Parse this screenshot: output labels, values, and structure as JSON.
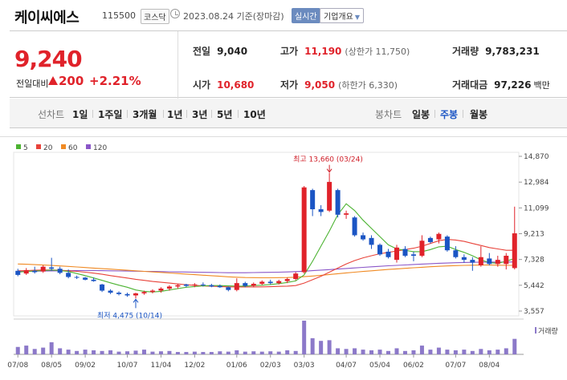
{
  "header": {
    "stock_name": "케이씨에스",
    "stock_code": "115500",
    "market": "코스닥",
    "date": "2023.08.24 기준(장마감)",
    "realtime_label": "실시간",
    "overview_label": "기업개요"
  },
  "quote": {
    "price": "9,240",
    "change_label": "전일대비",
    "change_value": "200",
    "change_pct": "+2.21%",
    "change_dir": "up",
    "prev_close_label": "전일",
    "prev_close": "9,040",
    "high_label": "고가",
    "high": "11,190",
    "upper_limit_text": "(상한가 11,750)",
    "volume_label": "거래량",
    "volume": "9,783,231",
    "open_label": "시가",
    "open": "10,680",
    "low_label": "저가",
    "low": "9,050",
    "lower_limit_text": "(하한가 6,330)",
    "turnover_label": "거래대금",
    "turnover": "97,226",
    "turnover_unit": "백만"
  },
  "period": {
    "line_chart_label": "선차트",
    "line_tabs": [
      "1일",
      "1주일",
      "3개월",
      "1년",
      "3년",
      "5년",
      "10년"
    ],
    "candle_chart_label": "봉차트",
    "candle_tabs": [
      "일봉",
      "주봉",
      "월봉"
    ],
    "active_candle_tab": "주봉"
  },
  "colors": {
    "up": "#e0222a",
    "down": "#1b55c4",
    "ma5": "#4cb332",
    "ma20": "#e8433a",
    "ma60": "#f08a24",
    "ma120": "#8a56c8",
    "volume": "#8c79c9"
  },
  "chart_data": {
    "type": "candlestick",
    "interval": "weekly",
    "legend": [
      {
        "name": "5",
        "color": "#4cb332"
      },
      {
        "name": "20",
        "color": "#e8433a"
      },
      {
        "name": "60",
        "color": "#f08a24"
      },
      {
        "name": "120",
        "color": "#8a56c8"
      }
    ],
    "y_ticks": [
      "14,870",
      "12,984",
      "11,099",
      "9,213",
      "7,328",
      "5,442",
      "3,557"
    ],
    "ylim": [
      3557,
      14870
    ],
    "x_ticks": [
      {
        "label": "07/08",
        "i": 0
      },
      {
        "label": "08/05",
        "i": 4
      },
      {
        "label": "09/02",
        "i": 8
      },
      {
        "label": "10/07",
        "i": 13
      },
      {
        "label": "11/04",
        "i": 17
      },
      {
        "label": "12/02",
        "i": 21
      },
      {
        "label": "01/06",
        "i": 26
      },
      {
        "label": "02/03",
        "i": 30
      },
      {
        "label": "03/03",
        "i": 34
      },
      {
        "label": "04/07",
        "i": 39
      },
      {
        "label": "05/04",
        "i": 43
      },
      {
        "label": "06/02",
        "i": 47
      },
      {
        "label": "07/07",
        "i": 52
      },
      {
        "label": "08/04",
        "i": 56
      }
    ],
    "annotations": {
      "high": {
        "text": "최고 13,660 (03/24)",
        "i": 37,
        "value": 13660
      },
      "low": {
        "text": "최저 4,475 (10/14)",
        "i": 14,
        "value": 4475
      }
    },
    "volume_label": "거래량",
    "candles": [
      {
        "o": 6500,
        "h": 6650,
        "l": 6100,
        "c": 6200
      },
      {
        "o": 6300,
        "h": 6700,
        "l": 6200,
        "c": 6550
      },
      {
        "o": 6500,
        "h": 6800,
        "l": 6300,
        "c": 6400
      },
      {
        "o": 6450,
        "h": 6900,
        "l": 6350,
        "c": 6800
      },
      {
        "o": 6750,
        "h": 7450,
        "l": 6500,
        "c": 6650
      },
      {
        "o": 6650,
        "h": 6800,
        "l": 6250,
        "c": 6350
      },
      {
        "o": 6350,
        "h": 6600,
        "l": 5950,
        "c": 6050
      },
      {
        "o": 6050,
        "h": 6150,
        "l": 5900,
        "c": 6000
      },
      {
        "o": 6000,
        "h": 6050,
        "l": 5800,
        "c": 5850
      },
      {
        "o": 5850,
        "h": 6000,
        "l": 5700,
        "c": 5750
      },
      {
        "o": 5500,
        "h": 5550,
        "l": 4950,
        "c": 5050
      },
      {
        "o": 5050,
        "h": 5150,
        "l": 4800,
        "c": 4900
      },
      {
        "o": 4900,
        "h": 5000,
        "l": 4700,
        "c": 4800
      },
      {
        "o": 4800,
        "h": 4900,
        "l": 4600,
        "c": 4700
      },
      {
        "o": 4700,
        "h": 4900,
        "l": 4475,
        "c": 4850
      },
      {
        "o": 4850,
        "h": 5050,
        "l": 4750,
        "c": 4950
      },
      {
        "o": 4950,
        "h": 5150,
        "l": 4850,
        "c": 5050
      },
      {
        "o": 5050,
        "h": 5300,
        "l": 4900,
        "c": 5200
      },
      {
        "o": 5200,
        "h": 5450,
        "l": 5050,
        "c": 5350
      },
      {
        "o": 5350,
        "h": 5550,
        "l": 5200,
        "c": 5450
      },
      {
        "o": 5500,
        "h": 5550,
        "l": 5300,
        "c": 5400
      },
      {
        "o": 5450,
        "h": 5600,
        "l": 5300,
        "c": 5500
      },
      {
        "o": 5500,
        "h": 5650,
        "l": 5350,
        "c": 5450
      },
      {
        "o": 5450,
        "h": 5550,
        "l": 5300,
        "c": 5350
      },
      {
        "o": 5400,
        "h": 5500,
        "l": 5250,
        "c": 5300
      },
      {
        "o": 5300,
        "h": 5350,
        "l": 5000,
        "c": 5100
      },
      {
        "o": 5100,
        "h": 5950,
        "l": 5000,
        "c": 5600
      },
      {
        "o": 5600,
        "h": 5700,
        "l": 5300,
        "c": 5400
      },
      {
        "o": 5400,
        "h": 5650,
        "l": 5300,
        "c": 5550
      },
      {
        "o": 5550,
        "h": 5800,
        "l": 5450,
        "c": 5700
      },
      {
        "o": 5700,
        "h": 5850,
        "l": 5500,
        "c": 5600
      },
      {
        "o": 5600,
        "h": 5850,
        "l": 5500,
        "c": 5750
      },
      {
        "o": 5750,
        "h": 6000,
        "l": 5600,
        "c": 5900
      },
      {
        "o": 5900,
        "h": 6400,
        "l": 5800,
        "c": 6300
      },
      {
        "o": 6400,
        "h": 12700,
        "l": 6300,
        "c": 12600
      },
      {
        "o": 12400,
        "h": 12500,
        "l": 10500,
        "c": 11000
      },
      {
        "o": 11000,
        "h": 11300,
        "l": 10500,
        "c": 10800
      },
      {
        "o": 10900,
        "h": 13660,
        "l": 10800,
        "c": 13000
      },
      {
        "o": 12400,
        "h": 12500,
        "l": 10400,
        "c": 10600
      },
      {
        "o": 10600,
        "h": 10900,
        "l": 10300,
        "c": 10700
      },
      {
        "o": 10400,
        "h": 10500,
        "l": 9000,
        "c": 9100
      },
      {
        "o": 9100,
        "h": 9300,
        "l": 8700,
        "c": 8800
      },
      {
        "o": 8900,
        "h": 9100,
        "l": 8100,
        "c": 8400
      },
      {
        "o": 8400,
        "h": 8500,
        "l": 7600,
        "c": 7700
      },
      {
        "o": 7900,
        "h": 8100,
        "l": 7400,
        "c": 7500
      },
      {
        "o": 7300,
        "h": 8400,
        "l": 7100,
        "c": 8200
      },
      {
        "o": 8100,
        "h": 8300,
        "l": 7500,
        "c": 7600
      },
      {
        "o": 7700,
        "h": 7900,
        "l": 7200,
        "c": 7600
      },
      {
        "o": 7600,
        "h": 9100,
        "l": 7500,
        "c": 8700
      },
      {
        "o": 8900,
        "h": 9000,
        "l": 8500,
        "c": 8600
      },
      {
        "o": 8800,
        "h": 9300,
        "l": 8500,
        "c": 9200
      },
      {
        "o": 9000,
        "h": 9100,
        "l": 7900,
        "c": 8000
      },
      {
        "o": 8000,
        "h": 8300,
        "l": 7400,
        "c": 7500
      },
      {
        "o": 7500,
        "h": 7700,
        "l": 7100,
        "c": 7300
      },
      {
        "o": 7300,
        "h": 7500,
        "l": 6500,
        "c": 7100
      },
      {
        "o": 6900,
        "h": 8300,
        "l": 6800,
        "c": 7500
      },
      {
        "o": 7400,
        "h": 7800,
        "l": 6900,
        "c": 7000
      },
      {
        "o": 7000,
        "h": 7600,
        "l": 6800,
        "c": 7300
      },
      {
        "o": 7000,
        "h": 7800,
        "l": 6600,
        "c": 7600
      },
      {
        "o": 6700,
        "h": 11190,
        "l": 6600,
        "c": 9240
      }
    ],
    "volume": [
      22,
      26,
      16,
      20,
      36,
      18,
      14,
      10,
      14,
      12,
      10,
      12,
      8,
      9,
      11,
      14,
      8,
      9,
      10,
      7,
      7,
      8,
      7,
      7,
      9,
      8,
      12,
      8,
      9,
      8,
      9,
      8,
      12,
      10,
      100,
      48,
      40,
      42,
      18,
      16,
      18,
      14,
      12,
      14,
      10,
      18,
      10,
      12,
      26,
      14,
      20,
      14,
      12,
      14,
      10,
      16,
      12,
      14,
      18,
      46
    ],
    "ma5": [
      6400,
      6450,
      6480,
      6520,
      6560,
      6520,
      6450,
      6300,
      6150,
      5980,
      5800,
      5620,
      5450,
      5300,
      5100,
      5000,
      4950,
      5000,
      5100,
      5200,
      5300,
      5350,
      5400,
      5420,
      5420,
      5400,
      5380,
      5380,
      5420,
      5450,
      5500,
      5560,
      5650,
      5760,
      6200,
      7200,
      8300,
      9400,
      10600,
      11400,
      10900,
      10200,
      9600,
      9000,
      8400,
      8100,
      8000,
      7900,
      7900,
      8050,
      8250,
      8300,
      8050,
      7850,
      7600,
      7300,
      7100,
      7050,
      7200,
      7400
    ],
    "ma20": [
      6500,
      6520,
      6540,
      6560,
      6560,
      6540,
      6500,
      6460,
      6400,
      6330,
      6250,
      6150,
      6060,
      5970,
      5880,
      5800,
      5720,
      5660,
      5600,
      5540,
      5480,
      5440,
      5400,
      5370,
      5350,
      5330,
      5320,
      5320,
      5320,
      5330,
      5340,
      5360,
      5380,
      5420,
      5600,
      5850,
      6100,
      6400,
      6700,
      7000,
      7250,
      7450,
      7600,
      7750,
      7850,
      7950,
      8050,
      8150,
      8300,
      8500,
      8700,
      8800,
      8750,
      8650,
      8500,
      8350,
      8200,
      8100,
      8000,
      8000
    ],
    "ma60": [
      7000,
      6980,
      6950,
      6920,
      6890,
      6860,
      6820,
      6780,
      6740,
      6700,
      6660,
      6620,
      6580,
      6540,
      6500,
      6460,
      6420,
      6380,
      6340,
      6300,
      6260,
      6220,
      6180,
      6140,
      6100,
      6060,
      6030,
      6010,
      6000,
      5990,
      5990,
      6000,
      6010,
      6030,
      6070,
      6120,
      6170,
      6230,
      6290,
      6350,
      6400,
      6450,
      6500,
      6550,
      6600,
      6640,
      6680,
      6720,
      6760,
      6800,
      6830,
      6860,
      6880,
      6900,
      6910,
      6920,
      6920,
      6910,
      6900,
      6900
    ],
    "ma120": [
      6450,
      6460,
      6470,
      6480,
      6490,
      6500,
      6510,
      6520,
      6520,
      6520,
      6510,
      6500,
      6490,
      6480,
      6470,
      6460,
      6450,
      6440,
      6430,
      6420,
      6410,
      6400,
      6390,
      6380,
      6370,
      6360,
      6360,
      6360,
      6370,
      6380,
      6390,
      6400,
      6420,
      6440,
      6470,
      6510,
      6550,
      6590,
      6630,
      6670,
      6710,
      6750,
      6790,
      6830,
      6870,
      6900,
      6930,
      6960,
      6990,
      7020,
      7050,
      7070,
      7090,
      7110,
      7120,
      7130,
      7140,
      7140,
      7140,
      7150
    ]
  }
}
